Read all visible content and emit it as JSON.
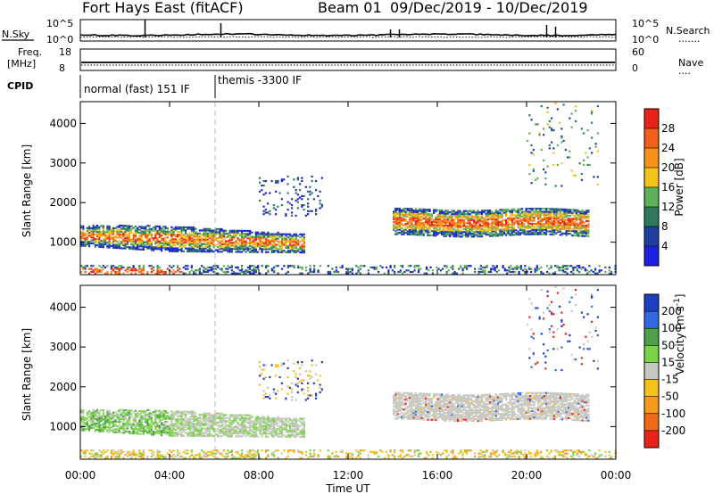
{
  "header": {
    "radar": "Fort Hays East (fitACF)",
    "beam": "Beam 01",
    "date_range": "09/Dec/2019 - 10/Dec/2019"
  },
  "top_panels": {
    "nsky_label": "N.Sky",
    "nsearch_label": "N.Search",
    "nsearch_style": "·······",
    "noise_ticks": [
      "10^5",
      "10^0"
    ],
    "freq_label_1": "Freq.",
    "freq_label_2": "[MHz]",
    "freq_ticks": [
      "18",
      "8"
    ],
    "nave_label": "Nave",
    "nave_style": "····",
    "nave_ticks": [
      "60",
      "0"
    ],
    "cpid_label": "CPID",
    "cpid_modes": [
      {
        "label": "normal (fast) 151 IF",
        "start_hour": 0
      },
      {
        "label": "themis -3300 IF",
        "start_hour": 6
      }
    ]
  },
  "chart_data": [
    {
      "type": "heatmap",
      "name": "power",
      "ylabel": "Slant Range [km]",
      "xlabel": "Time UT",
      "x_ticks": [
        "00:00",
        "04:00",
        "08:00",
        "12:00",
        "16:00",
        "20:00",
        "00:00"
      ],
      "x_range_hours": [
        0,
        24
      ],
      "y_ticks": [
        1000,
        2000,
        3000,
        4000
      ],
      "y_range_km": [
        180,
        4550
      ],
      "colorbar_label": "Power [dB]",
      "colorbar_ticks": [
        28,
        24,
        20,
        16,
        12,
        8,
        4
      ],
      "colorbar_colors": [
        "#e8241a",
        "#f0601a",
        "#f5921a",
        "#f5c21a",
        "#5fb05a",
        "#2f7a5a",
        "#1f3fa0",
        "#1f1fe0"
      ],
      "echo_regions": [
        {
          "t0": 0.0,
          "t1": 10.0,
          "r0": 700,
          "r1": 1450,
          "level": "medium-high"
        },
        {
          "t0": 14.0,
          "t1": 22.8,
          "r0": 1150,
          "r1": 1850,
          "level": "high"
        },
        {
          "t0": 0.0,
          "t1": 24.0,
          "r0": 180,
          "r1": 400,
          "level": "low-medium"
        },
        {
          "t0": 8.0,
          "t1": 10.8,
          "r0": 1600,
          "r1": 2700,
          "level": "low"
        },
        {
          "t0": 20.0,
          "t1": 23.0,
          "r0": 2400,
          "r1": 4500,
          "level": "sparse"
        }
      ]
    },
    {
      "type": "heatmap",
      "name": "velocity",
      "ylabel": "Slant Range [km]",
      "xlabel": "Time UT",
      "x_ticks": [
        "00:00",
        "04:00",
        "08:00",
        "12:00",
        "16:00",
        "20:00",
        "00:00"
      ],
      "x_range_hours": [
        0,
        24
      ],
      "y_ticks": [
        1000,
        2000,
        3000,
        4000
      ],
      "y_range_km": [
        180,
        4550
      ],
      "colorbar_label": "Velocity [m s^-1]",
      "colorbar_ticks": [
        200,
        100,
        50,
        15,
        -15,
        -50,
        -100,
        -200
      ],
      "colorbar_colors": [
        "#1f3fc0",
        "#2f6ae0",
        "#4fa04a",
        "#7ad44a",
        "#c8c8c0",
        "#f5c21a",
        "#f59a1a",
        "#f06a1a",
        "#e82418"
      ],
      "echo_regions": [
        {
          "t0": 0.0,
          "t1": 10.0,
          "r0": 700,
          "r1": 1450,
          "velocity": "low / slightly positive"
        },
        {
          "t0": 14.0,
          "t1": 22.8,
          "r0": 1150,
          "r1": 1850,
          "velocity": "near zero"
        },
        {
          "t0": 0.0,
          "t1": 24.0,
          "r0": 180,
          "r1": 400,
          "velocity": "negative"
        },
        {
          "t0": 20.0,
          "t1": 23.0,
          "r0": 2400,
          "r1": 4500,
          "velocity": "mixed"
        }
      ]
    }
  ],
  "colors": {
    "power_scale": [
      "#e8241a",
      "#f0601a",
      "#f5921a",
      "#f5c21a",
      "#5fb05a",
      "#2f7a5a",
      "#1f3fa0",
      "#1f1fe0"
    ],
    "velocity_scale": [
      "#1f3fc0",
      "#2f6ae0",
      "#4fa04a",
      "#7ad44a",
      "#c8c8c0",
      "#f5c21a",
      "#f59a1a",
      "#f06a1a",
      "#e82418"
    ]
  }
}
